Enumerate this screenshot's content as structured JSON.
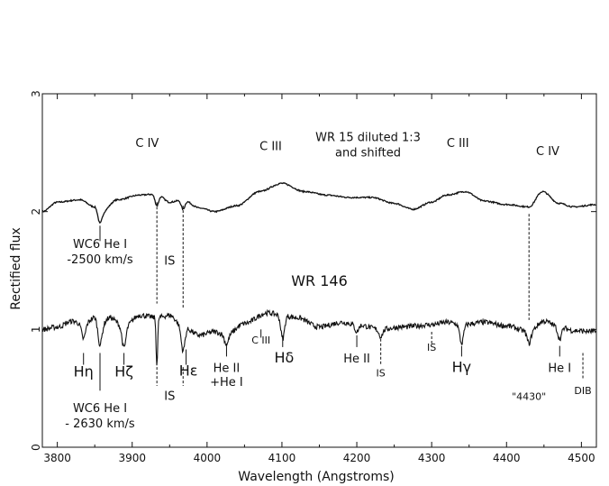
{
  "chart_data": {
    "type": "line",
    "xlabel": "Wavelength (Angstroms)",
    "ylabel": "Rectified flux",
    "xlim": [
      3780,
      4520
    ],
    "ylim": [
      0,
      3
    ],
    "x_ticks": [
      "3800",
      "3900",
      "4000",
      "4100",
      "4200",
      "4300",
      "4400",
      "4500"
    ],
    "y_ticks": [
      "0",
      "1",
      "2",
      "3"
    ],
    "grid": false,
    "series": [
      {
        "name": "WR 15 diluted 1:3 and shifted",
        "features": [
          {
            "x": 3780,
            "y": 2.0
          },
          {
            "x": 3800,
            "y": 2.08
          },
          {
            "x": 3830,
            "y": 2.1
          },
          {
            "x": 3850,
            "y": 2.04
          },
          {
            "x": 3857,
            "y": 1.98,
            "abs": 0.08
          },
          {
            "x": 3880,
            "y": 2.1
          },
          {
            "x": 3910,
            "y": 2.14
          },
          {
            "x": 3933,
            "y": 2.15,
            "abs": 0.1
          },
          {
            "x": 3950,
            "y": 2.08
          },
          {
            "x": 3968,
            "y": 2.1,
            "abs": 0.08
          },
          {
            "x": 3990,
            "y": 2.03
          },
          {
            "x": 4010,
            "y": 2.0
          },
          {
            "x": 4040,
            "y": 2.05
          },
          {
            "x": 4070,
            "y": 2.17
          },
          {
            "x": 4100,
            "y": 2.24
          },
          {
            "x": 4130,
            "y": 2.17
          },
          {
            "x": 4160,
            "y": 2.14
          },
          {
            "x": 4190,
            "y": 2.12
          },
          {
            "x": 4220,
            "y": 2.12
          },
          {
            "x": 4250,
            "y": 2.07
          },
          {
            "x": 4275,
            "y": 2.02
          },
          {
            "x": 4300,
            "y": 2.08
          },
          {
            "x": 4320,
            "y": 2.14
          },
          {
            "x": 4345,
            "y": 2.17
          },
          {
            "x": 4370,
            "y": 2.09
          },
          {
            "x": 4400,
            "y": 2.06
          },
          {
            "x": 4430,
            "y": 2.04
          },
          {
            "x": 4448,
            "y": 2.17
          },
          {
            "x": 4470,
            "y": 2.07
          },
          {
            "x": 4490,
            "y": 2.04
          },
          {
            "x": 4520,
            "y": 2.06
          }
        ]
      },
      {
        "name": "WR 146",
        "features": [
          {
            "x": 3780,
            "y": 1.0
          },
          {
            "x": 3800,
            "y": 1.02
          },
          {
            "x": 3820,
            "y": 1.07
          },
          {
            "x": 3835,
            "y": 1.04,
            "abs": 0.12
          },
          {
            "x": 3850,
            "y": 1.1
          },
          {
            "x": 3857,
            "y": 1.02,
            "abs": 0.15
          },
          {
            "x": 3870,
            "y": 1.1
          },
          {
            "x": 3889,
            "y": 1.02,
            "abs": 0.18
          },
          {
            "x": 3910,
            "y": 1.12
          },
          {
            "x": 3933,
            "y": 1.1,
            "abs": 0.4
          },
          {
            "x": 3950,
            "y": 1.12
          },
          {
            "x": 3968,
            "y": 1.02,
            "abs": 0.2
          },
          {
            "x": 3990,
            "y": 0.95
          },
          {
            "x": 4010,
            "y": 0.98
          },
          {
            "x": 4026,
            "y": 0.95,
            "abs": 0.08
          },
          {
            "x": 4050,
            "y": 1.05
          },
          {
            "x": 4080,
            "y": 1.14
          },
          {
            "x": 4101,
            "y": 1.12,
            "abs": 0.2
          },
          {
            "x": 4120,
            "y": 1.1
          },
          {
            "x": 4150,
            "y": 1.02
          },
          {
            "x": 4180,
            "y": 1.06
          },
          {
            "x": 4200,
            "y": 1.04,
            "abs": 0.06
          },
          {
            "x": 4232,
            "y": 1.0,
            "abs": 0.06
          },
          {
            "x": 4260,
            "y": 1.02
          },
          {
            "x": 4300,
            "y": 1.04
          },
          {
            "x": 4320,
            "y": 1.06
          },
          {
            "x": 4340,
            "y": 1.04,
            "abs": 0.16
          },
          {
            "x": 4370,
            "y": 1.06
          },
          {
            "x": 4400,
            "y": 1.03
          },
          {
            "x": 4430,
            "y": 0.98,
            "abs": 0.1
          },
          {
            "x": 4450,
            "y": 1.07
          },
          {
            "x": 4471,
            "y": 1.02,
            "abs": 0.1
          },
          {
            "x": 4490,
            "y": 0.99
          },
          {
            "x": 4520,
            "y": 0.98
          }
        ]
      }
    ],
    "annotations": [
      {
        "text": "C IV",
        "x": 3920,
        "y": 2.55,
        "cls": "ann"
      },
      {
        "text": "C III",
        "x": 4085,
        "y": 2.52,
        "cls": "ann"
      },
      {
        "text": "WR 15 diluted 1:3",
        "x": 4215,
        "y": 2.6,
        "cls": "ann"
      },
      {
        "text": "and shifted",
        "x": 4215,
        "y": 2.47,
        "cls": "ann"
      },
      {
        "text": "C III",
        "x": 4335,
        "y": 2.55,
        "cls": "ann"
      },
      {
        "text": "C IV",
        "x": 4455,
        "y": 2.48,
        "cls": "ann"
      },
      {
        "text": "WC6 He I",
        "x": 3857,
        "y": 1.69,
        "cls": "ann"
      },
      {
        "text": "-2500 km/s",
        "x": 3857,
        "y": 1.56,
        "cls": "ann"
      },
      {
        "text": "IS",
        "x": 3950,
        "y": 1.55,
        "cls": "ann"
      },
      {
        "text": "WR 146",
        "x": 4150,
        "y": 1.37,
        "cls": "ann-big"
      },
      {
        "text": "C III",
        "x": 4072,
        "y": 0.88,
        "cls": "ann-sm"
      },
      {
        "text": "Hδ",
        "x": 4103,
        "y": 0.72,
        "cls": "ann-big"
      },
      {
        "text": "He II",
        "x": 4200,
        "y": 0.72,
        "cls": "ann"
      },
      {
        "text": "IS",
        "x": 4232,
        "y": 0.6,
        "cls": "ann-sm"
      },
      {
        "text": "IS",
        "x": 4300,
        "y": 0.82,
        "cls": "ann-sm"
      },
      {
        "text": "Hγ",
        "x": 4340,
        "y": 0.64,
        "cls": "ann-big"
      },
      {
        "text": "He I",
        "x": 4471,
        "y": 0.64,
        "cls": "ann"
      },
      {
        "text": "DIB",
        "x": 4502,
        "y": 0.45,
        "cls": "ann-sm"
      },
      {
        "text": "\"4430\"",
        "x": 4430,
        "y": 0.4,
        "cls": "ann-sm"
      },
      {
        "text": "Hη",
        "x": 3835,
        "y": 0.6,
        "cls": "ann-big"
      },
      {
        "text": "Hζ",
        "x": 3889,
        "y": 0.6,
        "cls": "ann-big"
      },
      {
        "text": "Hε",
        "x": 3975,
        "y": 0.61,
        "cls": "ann-big"
      },
      {
        "text": "He II",
        "x": 4026,
        "y": 0.64,
        "cls": "ann"
      },
      {
        "text": "+He I",
        "x": 4026,
        "y": 0.52,
        "cls": "ann"
      },
      {
        "text": "IS",
        "x": 3950,
        "y": 0.4,
        "cls": "ann"
      },
      {
        "text": "WC6 He I",
        "x": 3857,
        "y": 0.3,
        "cls": "ann"
      },
      {
        "text": "- 2630 km/s",
        "x": 3857,
        "y": 0.17,
        "cls": "ann"
      }
    ],
    "markers": [
      {
        "x": 3857,
        "y1": 1.88,
        "y2": 1.75,
        "style": "solid"
      },
      {
        "x": 3933,
        "y1": 2.08,
        "y2": 1.22,
        "style": "dashed"
      },
      {
        "x": 3968,
        "y1": 2.05,
        "y2": 1.18,
        "style": "dashed"
      },
      {
        "x": 4430,
        "y1": 1.98,
        "y2": 1.08,
        "style": "dashed"
      },
      {
        "x": 3835,
        "y1": 0.8,
        "y2": 0.7,
        "style": "solid"
      },
      {
        "x": 3857,
        "y1": 0.8,
        "y2": 0.48,
        "style": "solid"
      },
      {
        "x": 3889,
        "y1": 0.8,
        "y2": 0.7,
        "style": "solid"
      },
      {
        "x": 3933,
        "y1": 0.68,
        "y2": 0.52,
        "style": "dashed"
      },
      {
        "x": 3968,
        "y1": 0.68,
        "y2": 0.52,
        "style": "dashed"
      },
      {
        "x": 3972,
        "y1": 0.83,
        "y2": 0.7,
        "style": "solid"
      },
      {
        "x": 4026,
        "y1": 0.88,
        "y2": 0.77,
        "style": "solid"
      },
      {
        "x": 4072,
        "y1": 1.0,
        "y2": 0.93,
        "style": "solid"
      },
      {
        "x": 4101,
        "y1": 0.95,
        "y2": 0.85,
        "style": "solid"
      },
      {
        "x": 4200,
        "y1": 0.95,
        "y2": 0.85,
        "style": "solid"
      },
      {
        "x": 4232,
        "y1": 0.92,
        "y2": 0.7,
        "style": "dashed"
      },
      {
        "x": 4300,
        "y1": 0.98,
        "y2": 0.88,
        "style": "dashed"
      },
      {
        "x": 4340,
        "y1": 0.86,
        "y2": 0.77,
        "style": "solid"
      },
      {
        "x": 4471,
        "y1": 0.86,
        "y2": 0.77,
        "style": "solid"
      },
      {
        "x": 4502,
        "y1": 0.8,
        "y2": 0.58,
        "style": "dashed"
      }
    ]
  }
}
